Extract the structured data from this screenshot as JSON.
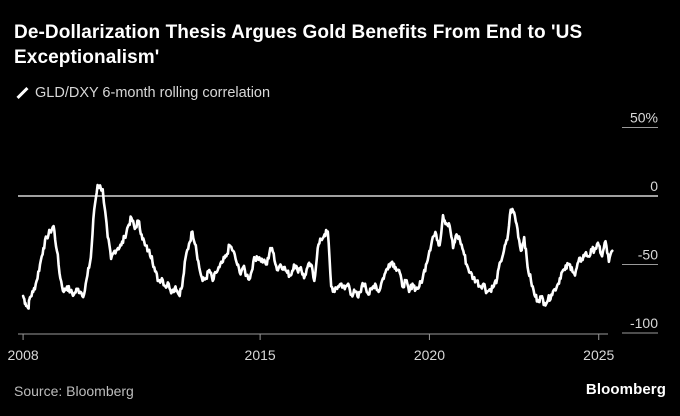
{
  "title": "De-Dollarization Thesis Argues Gold Benefits From End to 'US Exceptionalism'",
  "source": "Source: Bloomberg",
  "brand": "Bloomberg",
  "colors": {
    "background": "#000000",
    "line": "#ffffff",
    "zero_line": "#ffffff",
    "text": "#d8d8d8"
  },
  "chart_data": {
    "type": "line",
    "title": "De-Dollarization Thesis Argues Gold Benefits From End to 'US Exceptionalism'",
    "xlabel": "",
    "ylabel": "",
    "x_ticks": [
      {
        "value": 2008,
        "label": "2008"
      },
      {
        "value": 2015,
        "label": "2015"
      },
      {
        "value": 2020,
        "label": "2020"
      },
      {
        "value": 2025,
        "label": "2025"
      }
    ],
    "y_ticks": [
      {
        "value": 50,
        "label": "50%"
      },
      {
        "value": 0,
        "label": "0"
      },
      {
        "value": -50,
        "label": "-50"
      },
      {
        "value": -100,
        "label": "-100"
      }
    ],
    "xlim": [
      2007.85,
      2026.75
    ],
    "ylim": [
      -100,
      50
    ],
    "y_axis_position": "right",
    "reference_line": 0,
    "grid": false,
    "legend_position": "top-left",
    "series": [
      {
        "name": "GLD/DXY 6-month rolling correlation",
        "x": [
          2008.0,
          2008.07,
          2008.15,
          2008.2,
          2008.3,
          2008.4,
          2008.5,
          2008.6,
          2008.7,
          2008.8,
          2008.9,
          2009.0,
          2009.1,
          2009.2,
          2009.3,
          2009.4,
          2009.5,
          2009.6,
          2009.7,
          2009.8,
          2009.9,
          2010.0,
          2010.1,
          2010.2,
          2010.35,
          2010.5,
          2010.6,
          2010.7,
          2010.8,
          2010.9,
          2011.0,
          2011.1,
          2011.2,
          2011.3,
          2011.4,
          2011.5,
          2011.6,
          2011.7,
          2011.8,
          2011.9,
          2012.0,
          2012.1,
          2012.2,
          2012.3,
          2012.4,
          2012.5,
          2012.6,
          2012.7,
          2012.8,
          2012.9,
          2013.0,
          2013.1,
          2013.2,
          2013.3,
          2013.4,
          2013.5,
          2013.6,
          2013.7,
          2013.8,
          2013.9,
          2014.0,
          2014.1,
          2014.2,
          2014.3,
          2014.4,
          2014.5,
          2014.6,
          2014.7,
          2014.8,
          2014.9,
          2015.0,
          2015.1,
          2015.2,
          2015.3,
          2015.4,
          2015.5,
          2015.6,
          2015.7,
          2015.8,
          2015.9,
          2016.0,
          2016.1,
          2016.2,
          2016.3,
          2016.4,
          2016.5,
          2016.6,
          2016.7,
          2016.8,
          2016.9,
          2017.0,
          2017.1,
          2017.2,
          2017.3,
          2017.4,
          2017.5,
          2017.6,
          2017.7,
          2017.8,
          2017.9,
          2018.0,
          2018.1,
          2018.2,
          2018.3,
          2018.4,
          2018.5,
          2018.6,
          2018.7,
          2018.8,
          2018.9,
          2019.0,
          2019.1,
          2019.2,
          2019.3,
          2019.4,
          2019.5,
          2019.6,
          2019.7,
          2019.8,
          2019.9,
          2020.0,
          2020.1,
          2020.2,
          2020.3,
          2020.4,
          2020.5,
          2020.6,
          2020.7,
          2020.8,
          2020.9,
          2021.0,
          2021.1,
          2021.2,
          2021.3,
          2021.4,
          2021.5,
          2021.6,
          2021.7,
          2021.8,
          2021.9,
          2022.0,
          2022.1,
          2022.2,
          2022.3,
          2022.4,
          2022.5,
          2022.6,
          2022.7,
          2022.8,
          2022.9,
          2023.0,
          2023.1,
          2023.2,
          2023.3,
          2023.4,
          2023.5,
          2023.6,
          2023.7,
          2023.8,
          2023.9,
          2024.0,
          2024.1,
          2024.2,
          2024.3,
          2024.4,
          2024.5,
          2024.6,
          2024.7,
          2024.8,
          2024.9,
          2025.0,
          2025.1,
          2025.2,
          2025.3,
          2025.4
        ],
        "values": [
          -73,
          -78,
          -82,
          -74,
          -70,
          -62,
          -50,
          -38,
          -30,
          -26,
          -22,
          -40,
          -60,
          -70,
          -66,
          -70,
          -72,
          -68,
          -70,
          -72,
          -58,
          -45,
          -10,
          8,
          5,
          -30,
          -46,
          -40,
          -38,
          -36,
          -30,
          -22,
          -16,
          -24,
          -18,
          -28,
          -36,
          -40,
          -44,
          -55,
          -62,
          -60,
          -66,
          -64,
          -70,
          -66,
          -72,
          -66,
          -45,
          -35,
          -26,
          -36,
          -52,
          -62,
          -60,
          -54,
          -62,
          -56,
          -52,
          -48,
          -44,
          -36,
          -40,
          -48,
          -56,
          -52,
          -58,
          -60,
          -48,
          -44,
          -46,
          -48,
          -50,
          -38,
          -42,
          -54,
          -50,
          -52,
          -56,
          -58,
          -50,
          -54,
          -52,
          -60,
          -52,
          -50,
          -62,
          -38,
          -32,
          -28,
          -26,
          -66,
          -70,
          -66,
          -64,
          -68,
          -64,
          -72,
          -70,
          -74,
          -66,
          -64,
          -72,
          -68,
          -64,
          -70,
          -62,
          -56,
          -50,
          -48,
          -52,
          -54,
          -66,
          -62,
          -70,
          -64,
          -68,
          -66,
          -60,
          -50,
          -40,
          -30,
          -28,
          -36,
          -14,
          -20,
          -22,
          -38,
          -28,
          -32,
          -40,
          -50,
          -56,
          -60,
          -62,
          -66,
          -64,
          -70,
          -68,
          -66,
          -60,
          -48,
          -40,
          -32,
          -10,
          -12,
          -24,
          -40,
          -30,
          -52,
          -62,
          -72,
          -76,
          -74,
          -78,
          -76,
          -72,
          -68,
          -64,
          -56,
          -54,
          -50,
          -52,
          -58,
          -48,
          -46,
          -42,
          -44,
          -40,
          -38,
          -36,
          -44,
          -33,
          -48,
          -40
        ]
      }
    ]
  }
}
